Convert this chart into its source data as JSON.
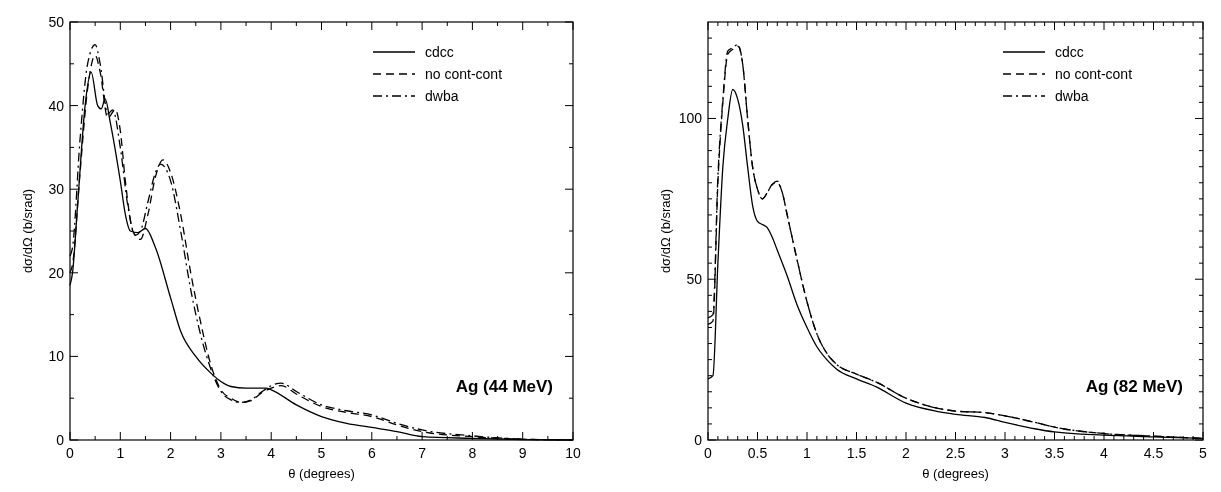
{
  "chart_data": [
    {
      "type": "line",
      "xlabel": "θ (degrees)",
      "ylabel": "dσ/dΩ (b/srad)",
      "annotations": [
        "Ag (44 MeV)"
      ],
      "legend": "top right",
      "xlim": [
        0,
        10
      ],
      "ylim": [
        0,
        50
      ],
      "xticks": [
        0,
        {
          "value": 0.5,
          "label": null
        },
        1,
        {
          "value": 1.5,
          "label": null
        },
        2,
        {
          "value": 2.5,
          "label": null
        },
        3,
        {
          "value": 3.5,
          "label": null
        },
        4,
        {
          "value": 4.5,
          "label": null
        },
        5,
        {
          "value": 5.5,
          "label": null
        },
        6,
        {
          "value": 6.5,
          "label": null
        },
        7,
        {
          "value": 7.5,
          "label": null
        },
        8,
        {
          "value": 8.5,
          "label": null
        },
        9,
        {
          "value": 9.5,
          "label": null
        },
        10
      ],
      "yticks": [
        0,
        {
          "value": 5,
          "label": null
        },
        10,
        {
          "value": 15,
          "label": null
        },
        20,
        {
          "value": 25,
          "label": null
        },
        30,
        {
          "value": 35,
          "label": null
        },
        40,
        {
          "value": 45,
          "label": null
        },
        50
      ],
      "series": [
        {
          "name": "cdcc",
          "color": "#000000",
          "line_style": "solid",
          "x": [
            0,
            0.05,
            0.15,
            0.3,
            0.42,
            0.55,
            0.62,
            0.7,
            0.8,
            1.0,
            1.1,
            1.2,
            1.35,
            1.5,
            1.7,
            2.0,
            2.2,
            2.5,
            2.8,
            3.0,
            3.2,
            3.5,
            3.9,
            4.0,
            4.5,
            5.0,
            5.5,
            6.0,
            6.5,
            7.0,
            8.0,
            9.0,
            10.0
          ],
          "values": [
            18.5,
            20,
            28,
            40,
            44,
            40,
            39.6,
            40.8,
            38,
            31,
            27,
            25,
            24.8,
            25.3,
            23,
            17,
            13,
            10,
            8,
            7,
            6.4,
            6.2,
            6.2,
            6.0,
            4.2,
            2.8,
            2.0,
            1.5,
            1.0,
            0.4,
            0.2,
            0.05,
            0
          ]
        },
        {
          "name": "no cont-cont",
          "color": "#000000",
          "line_style": "dashed",
          "x": [
            0,
            0.05,
            0.2,
            0.35,
            0.5,
            0.6,
            0.75,
            0.9,
            1.0,
            1.1,
            1.25,
            1.4,
            1.55,
            1.7,
            1.85,
            2.0,
            2.2,
            2.4,
            2.6,
            2.8,
            3.0,
            3.2,
            3.4,
            3.6,
            3.8,
            4.0,
            4.2,
            4.5,
            5.0,
            5.5,
            6.0,
            6.5,
            7.0,
            8.0,
            9.0,
            10.0
          ],
          "values": [
            20,
            21,
            32,
            42,
            46,
            44,
            38.5,
            39.5,
            37,
            31,
            25,
            24,
            27,
            31.5,
            33.5,
            32,
            27,
            20,
            14,
            9,
            6,
            5,
            4.5,
            4.7,
            5.6,
            6.2,
            6.5,
            5.5,
            4,
            3.3,
            2.8,
            1.8,
            1.0,
            0.4,
            0.1,
            0
          ]
        },
        {
          "name": "dwba",
          "color": "#000000",
          "line_style": "dashdot",
          "x": [
            0,
            0.05,
            0.2,
            0.35,
            0.5,
            0.6,
            0.75,
            0.85,
            1.0,
            1.15,
            1.3,
            1.4,
            1.55,
            1.7,
            1.8,
            2.0,
            2.2,
            2.4,
            2.6,
            2.8,
            3.0,
            3.2,
            3.4,
            3.6,
            3.8,
            4.0,
            4.2,
            4.5,
            5.0,
            5.5,
            6.0,
            6.5,
            7.0,
            8.0,
            9.0,
            10.0
          ],
          "values": [
            22,
            23,
            36,
            45,
            47.3,
            45,
            39,
            39.5,
            35,
            28,
            24.5,
            25,
            28.5,
            32,
            33,
            31,
            25,
            18,
            12.5,
            8.5,
            5.8,
            4.8,
            4.5,
            4.8,
            5.7,
            6.5,
            6.8,
            5.8,
            4.2,
            3.5,
            3.0,
            2.0,
            1.2,
            0.5,
            0.1,
            0
          ]
        }
      ]
    },
    {
      "type": "line",
      "xlabel": "θ (degrees)",
      "ylabel": "dσ/dΩ (b/srad)",
      "annotations": [
        "Ag (82 MeV)"
      ],
      "legend": "top right",
      "xlim": [
        0,
        5
      ],
      "ylim": [
        0,
        130
      ],
      "xticks": [
        0,
        {
          "value": 0.1,
          "label": null
        },
        {
          "value": 0.2,
          "label": null
        },
        {
          "value": 0.3,
          "label": null
        },
        {
          "value": 0.4,
          "label": null
        },
        0.5,
        {
          "value": 0.6,
          "label": null
        },
        {
          "value": 0.7,
          "label": null
        },
        {
          "value": 0.8,
          "label": null
        },
        {
          "value": 0.9,
          "label": null
        },
        1,
        {
          "value": 1.1,
          "label": null
        },
        {
          "value": 1.2,
          "label": null
        },
        {
          "value": 1.3,
          "label": null
        },
        {
          "value": 1.4,
          "label": null
        },
        1.5,
        {
          "value": 1.6,
          "label": null
        },
        {
          "value": 1.7,
          "label": null
        },
        {
          "value": 1.8,
          "label": null
        },
        {
          "value": 1.9,
          "label": null
        },
        2,
        {
          "value": 2.1,
          "label": null
        },
        {
          "value": 2.2,
          "label": null
        },
        {
          "value": 2.3,
          "label": null
        },
        {
          "value": 2.4,
          "label": null
        },
        2.5,
        {
          "value": 2.6,
          "label": null
        },
        {
          "value": 2.7,
          "label": null
        },
        {
          "value": 2.8,
          "label": null
        },
        {
          "value": 2.9,
          "label": null
        },
        3,
        {
          "value": 3.1,
          "label": null
        },
        {
          "value": 3.2,
          "label": null
        },
        {
          "value": 3.3,
          "label": null
        },
        {
          "value": 3.4,
          "label": null
        },
        3.5,
        {
          "value": 3.6,
          "label": null
        },
        {
          "value": 3.7,
          "label": null
        },
        {
          "value": 3.8,
          "label": null
        },
        {
          "value": 3.9,
          "label": null
        },
        4,
        {
          "value": 4.1,
          "label": null
        },
        {
          "value": 4.2,
          "label": null
        },
        {
          "value": 4.3,
          "label": null
        },
        {
          "value": 4.4,
          "label": null
        },
        4.5,
        {
          "value": 4.6,
          "label": null
        },
        {
          "value": 4.7,
          "label": null
        },
        {
          "value": 4.8,
          "label": null
        },
        {
          "value": 4.9,
          "label": null
        },
        5
      ],
      "yticks": [
        0,
        {
          "value": 5,
          "label": null
        },
        {
          "value": 10,
          "label": null
        },
        {
          "value": 15,
          "label": null
        },
        {
          "value": 20,
          "label": null
        },
        {
          "value": 25,
          "label": null
        },
        {
          "value": 30,
          "label": null
        },
        {
          "value": 35,
          "label": null
        },
        {
          "value": 40,
          "label": null
        },
        {
          "value": 45,
          "label": null
        },
        50,
        {
          "value": 55,
          "label": null
        },
        {
          "value": 60,
          "label": null
        },
        {
          "value": 65,
          "label": null
        },
        {
          "value": 70,
          "label": null
        },
        {
          "value": 75,
          "label": null
        },
        {
          "value": 80,
          "label": null
        },
        {
          "value": 85,
          "label": null
        },
        {
          "value": 90,
          "label": null
        },
        {
          "value": 95,
          "label": null
        },
        100,
        {
          "value": 105,
          "label": null
        },
        {
          "value": 110,
          "label": null
        },
        {
          "value": 115,
          "label": null
        },
        {
          "value": 120,
          "label": null
        },
        {
          "value": 125,
          "label": null
        }
      ],
      "series": [
        {
          "name": "cdcc",
          "color": "#000000",
          "line_style": "solid",
          "x": [
            0,
            0.05,
            0.1,
            0.15,
            0.2,
            0.25,
            0.3,
            0.35,
            0.4,
            0.45,
            0.5,
            0.55,
            0.6,
            0.65,
            0.7,
            0.8,
            0.9,
            1.0,
            1.1,
            1.2,
            1.3,
            1.5,
            1.7,
            2.0,
            2.3,
            2.5,
            2.8,
            3.0,
            3.3,
            3.5,
            4.0,
            4.5,
            5.0
          ],
          "values": [
            19,
            20,
            55,
            85,
            100,
            109,
            106,
            98,
            85,
            73,
            68,
            67,
            66,
            63,
            59,
            51,
            42,
            35,
            29,
            25,
            22,
            19,
            16.5,
            11.5,
            9,
            8,
            7,
            5.5,
            3.5,
            2.5,
            1.5,
            1,
            0.5
          ]
        },
        {
          "name": "no cont-cont",
          "color": "#000000",
          "line_style": "dashed",
          "x": [
            0,
            0.05,
            0.1,
            0.15,
            0.2,
            0.25,
            0.3,
            0.35,
            0.4,
            0.45,
            0.5,
            0.55,
            0.6,
            0.65,
            0.7,
            0.75,
            0.8,
            0.9,
            1.0,
            1.1,
            1.2,
            1.3,
            1.5,
            1.7,
            2.0,
            2.3,
            2.5,
            2.8,
            3.0,
            3.3,
            3.5,
            4.0,
            4.5,
            5.0
          ],
          "values": [
            36,
            37,
            80,
            105,
            120,
            121.5,
            122.5,
            117,
            100,
            85,
            78,
            75,
            77,
            79.5,
            80,
            77,
            70,
            56,
            43,
            33,
            27,
            23.5,
            20.5,
            18,
            13,
            10,
            9,
            8.5,
            7.5,
            5.5,
            4,
            2,
            1.2,
            0.5
          ]
        },
        {
          "name": "dwba",
          "color": "#000000",
          "line_style": "dashdot",
          "x": [
            0,
            0.05,
            0.1,
            0.15,
            0.2,
            0.25,
            0.3,
            0.35,
            0.4,
            0.45,
            0.5,
            0.55,
            0.6,
            0.65,
            0.7,
            0.75,
            0.8,
            0.9,
            1.0,
            1.1,
            1.2,
            1.3,
            1.5,
            1.7,
            2.0,
            2.3,
            2.5,
            2.8,
            3.0,
            3.3,
            3.5,
            4.0,
            4.5,
            5.0
          ],
          "values": [
            38,
            39,
            82,
            106,
            121,
            122,
            123,
            117,
            100,
            85,
            78,
            75,
            77,
            79.5,
            80.5,
            77,
            70,
            56,
            43,
            33,
            27,
            23.5,
            20.5,
            18,
            13,
            10,
            9,
            8.5,
            7.5,
            5.5,
            4,
            2,
            1.2,
            0.5
          ]
        }
      ]
    }
  ]
}
